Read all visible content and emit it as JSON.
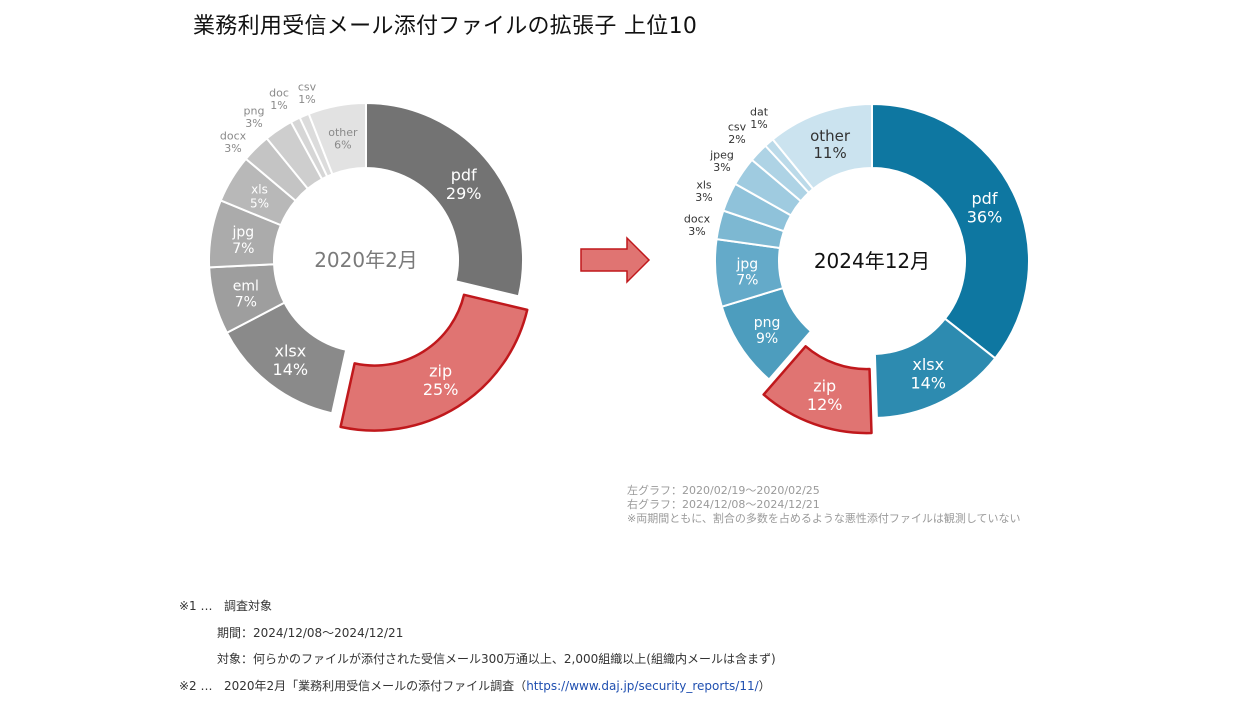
{
  "title": "業務利用受信メール添付ファイルの拡張子 上位10",
  "colors": {
    "highlight_fill": "#e07472",
    "highlight_stroke": "#c0181c",
    "arrow_fill": "#e07472",
    "arrow_stroke": "#c0181c"
  },
  "chart_data": [
    {
      "type": "pie",
      "variant": "donut",
      "center_label": "2020年2月",
      "highlight": "zip",
      "slices": [
        {
          "label": "pdf",
          "value": 29,
          "pct": "29%",
          "color": "#737373"
        },
        {
          "label": "zip",
          "value": 25,
          "pct": "25%",
          "color": "#e07472"
        },
        {
          "label": "xlsx",
          "value": 14,
          "pct": "14%",
          "color": "#8a8a8a"
        },
        {
          "label": "eml",
          "value": 7,
          "pct": "7%",
          "color": "#9e9e9e"
        },
        {
          "label": "jpg",
          "value": 7,
          "pct": "7%",
          "color": "#ababab"
        },
        {
          "label": "xls",
          "value": 5,
          "pct": "5%",
          "color": "#b8b8b8"
        },
        {
          "label": "docx",
          "value": 3,
          "pct": "3%",
          "color": "#c4c4c4"
        },
        {
          "label": "png",
          "value": 3,
          "pct": "3%",
          "color": "#cecece"
        },
        {
          "label": "doc",
          "value": 1,
          "pct": "1%",
          "color": "#d6d6d6"
        },
        {
          "label": "csv",
          "value": 1,
          "pct": "1%",
          "color": "#dcdcdc"
        },
        {
          "label": "other",
          "value": 6,
          "pct": "6%",
          "color": "#e2e2e2"
        }
      ]
    },
    {
      "type": "pie",
      "variant": "donut",
      "center_label": "2024年12月",
      "highlight": "zip",
      "slices": [
        {
          "label": "pdf",
          "value": 36,
          "pct": "36%",
          "color": "#0e77a1"
        },
        {
          "label": "xlsx",
          "value": 14,
          "pct": "14%",
          "color": "#2d8bb0"
        },
        {
          "label": "zip",
          "value": 12,
          "pct": "12%",
          "color": "#e07472"
        },
        {
          "label": "png",
          "value": 9,
          "pct": "9%",
          "color": "#4d9dbe"
        },
        {
          "label": "jpg",
          "value": 7,
          "pct": "7%",
          "color": "#64aac9"
        },
        {
          "label": "docx",
          "value": 3,
          "pct": "3%",
          "color": "#7db8d2"
        },
        {
          "label": "xls",
          "value": 3,
          "pct": "3%",
          "color": "#8fc2da"
        },
        {
          "label": "jpeg",
          "value": 3,
          "pct": "3%",
          "color": "#9fcbe0"
        },
        {
          "label": "csv",
          "value": 2,
          "pct": "2%",
          "color": "#aed3e5"
        },
        {
          "label": "dat",
          "value": 1,
          "pct": "1%",
          "color": "#bbdae9"
        },
        {
          "label": "other",
          "value": 11,
          "pct": "11%",
          "color": "#cbe3ef"
        }
      ]
    }
  ],
  "notes": {
    "left_graph": "左グラフ：2020/02/19～2020/02/25",
    "right_graph": "右グラフ：2024/12/08～2024/12/21",
    "remark": "※両期間ともに、割合の多数を占めるような悪性添付ファイルは観測していない"
  },
  "footer": {
    "n1_mark": "※1 …",
    "n1_text": "調査対象",
    "period": "期間：2024/12/08～2024/12/21",
    "target": "対象：何らかのファイルが添付された受信メール300万通以上、2,000組織以上(組織内メールは含まず)",
    "n2_mark": "※2 …",
    "n2_text": "2020年2月「業務利用受信メールの添付ファイル調査（",
    "n2_link": "https://www.daj.jp/security_reports/11/",
    "n2_close": "）"
  }
}
